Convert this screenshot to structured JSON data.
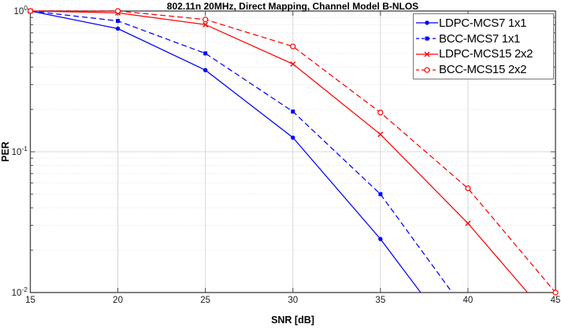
{
  "chart_data": {
    "type": "line",
    "title": "802.11n 20MHz, Direct Mapping, Channel Model B-NLOS",
    "xlabel": "SNR [dB]",
    "ylabel": "PER",
    "xlim": [
      15,
      45
    ],
    "ylim": [
      0.01,
      1
    ],
    "y_scale": "log10",
    "grid": true,
    "minor_grid": "dotted",
    "legend_position": "top-right-inside",
    "x_ticks": [
      15,
      20,
      25,
      30,
      35,
      40,
      45
    ],
    "y_ticks": [
      {
        "value": 1,
        "base": "10",
        "exp": "0"
      },
      {
        "value": 0.1,
        "base": "10",
        "exp": "-1"
      },
      {
        "value": 0.01,
        "base": "10",
        "exp": "-2"
      }
    ],
    "clip_note": "last x value of each series is where the curve crosses PER=0.01 (clipped by axis); markers only at 5 dB data points",
    "series": [
      {
        "name": "LDPC-MCS7 1x1",
        "color": "#0000ff",
        "line": "solid",
        "marker": "dot",
        "x": [
          15,
          20,
          25,
          30,
          35,
          37.3
        ],
        "per": [
          1.0,
          0.75,
          0.38,
          0.126,
          0.024,
          0.01
        ]
      },
      {
        "name": "BCC-MCS7 1x1",
        "color": "#0000ff",
        "line": "dashed",
        "marker": "square",
        "x": [
          15,
          20,
          25,
          30,
          35,
          39.1
        ],
        "per": [
          1.0,
          0.85,
          0.5,
          0.193,
          0.05,
          0.01
        ]
      },
      {
        "name": "LDPC-MCS15 2x2",
        "color": "#ff0000",
        "line": "solid",
        "marker": "x",
        "x": [
          15,
          20,
          25,
          30,
          35,
          40,
          43.4
        ],
        "per": [
          1.0,
          0.97,
          0.8,
          0.42,
          0.133,
          0.031,
          0.01
        ]
      },
      {
        "name": "BCC-MCS15 2x2",
        "color": "#ff0000",
        "line": "dashed",
        "marker": "circle-open",
        "x": [
          15,
          20,
          25,
          30,
          35,
          40,
          45
        ],
        "per": [
          1.0,
          1.0,
          0.87,
          0.56,
          0.19,
          0.055,
          0.01
        ]
      }
    ]
  },
  "colors": {
    "grid_major": "#d7d7d7",
    "grid_minor": "#dedede",
    "axis": "#4d4d4d",
    "tick_text": "#1a1a1a",
    "legend_border": "#777777",
    "background": "#ffffff"
  }
}
